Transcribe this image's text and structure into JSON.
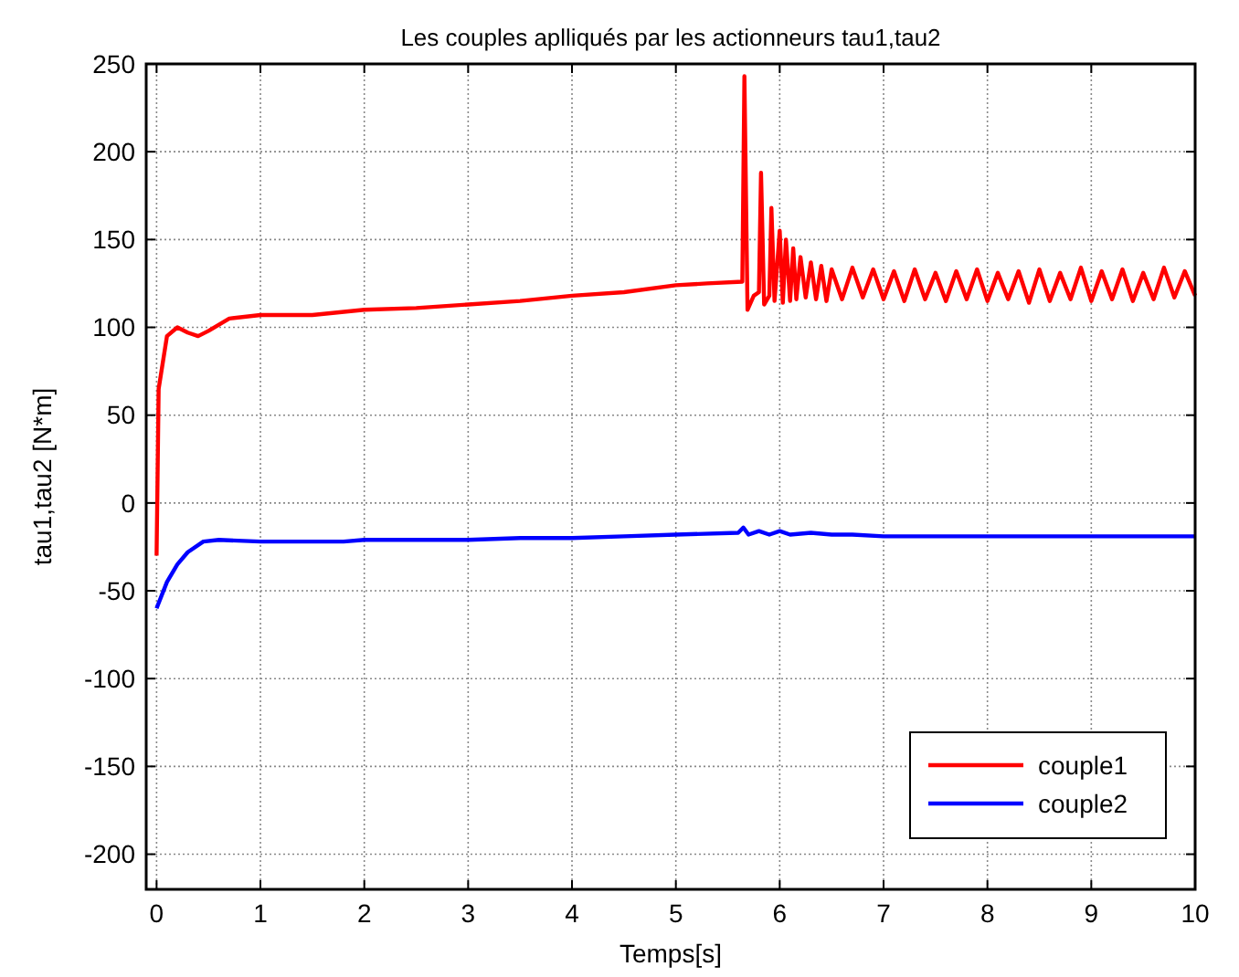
{
  "chart_data": {
    "type": "line",
    "title": "Les couples aplliqués par les actionneurs tau1,tau2",
    "xlabel": "Temps[s]",
    "ylabel": "tau1,tau2 [N*m]",
    "xlim": [
      -0.1,
      10
    ],
    "xticks": [
      0,
      1,
      2,
      3,
      4,
      5,
      6,
      7,
      8,
      9,
      10
    ],
    "ylim": [
      -220,
      250
    ],
    "yticks": [
      -200,
      -150,
      -100,
      -50,
      0,
      50,
      100,
      150,
      200,
      250
    ],
    "grid": true,
    "legend": "bottom right",
    "line_style": "solid",
    "marker": "none",
    "series": [
      {
        "name": "couple1",
        "color": "#ff0000",
        "x": [
          0,
          0.02,
          0.1,
          0.2,
          0.3,
          0.4,
          0.5,
          0.7,
          1,
          1.5,
          2,
          2.5,
          3,
          3.5,
          4,
          4.5,
          5,
          5.3,
          5.64,
          5.66,
          5.69,
          5.75,
          5.8,
          5.82,
          5.85,
          5.9,
          5.92,
          5.95,
          6,
          6.03,
          6.06,
          6.1,
          6.13,
          6.16,
          6.2,
          6.25,
          6.3,
          6.35,
          6.4,
          6.45,
          6.5,
          6.6,
          6.7,
          6.8,
          6.9,
          7,
          7.1,
          7.2,
          7.3,
          7.4,
          7.5,
          7.6,
          7.7,
          7.8,
          7.9,
          8,
          8.1,
          8.2,
          8.3,
          8.4,
          8.5,
          8.6,
          8.7,
          8.8,
          8.9,
          9,
          9.1,
          9.2,
          9.3,
          9.4,
          9.5,
          9.6,
          9.7,
          9.8,
          9.9,
          10
        ],
        "values": [
          -30,
          65,
          95,
          100,
          97,
          95,
          98,
          105,
          107,
          107,
          110,
          111,
          113,
          115,
          118,
          120,
          124,
          125,
          126,
          243,
          110,
          118,
          120,
          188,
          113,
          118,
          168,
          115,
          155,
          114,
          150,
          115,
          145,
          116,
          140,
          117,
          137,
          116,
          135,
          115,
          133,
          116,
          134,
          117,
          133,
          116,
          132,
          115,
          133,
          116,
          131,
          115,
          132,
          116,
          133,
          115,
          131,
          116,
          132,
          114,
          133,
          115,
          131,
          116,
          134,
          115,
          132,
          116,
          133,
          115,
          131,
          116,
          134,
          117,
          132,
          118
        ]
      },
      {
        "name": "couple2",
        "color": "#0000ff",
        "x": [
          0,
          0.1,
          0.2,
          0.3,
          0.45,
          0.6,
          1,
          1.5,
          1.8,
          2,
          2.5,
          3,
          3.5,
          4,
          4.5,
          5,
          5.6,
          5.65,
          5.7,
          5.8,
          5.9,
          6,
          6.1,
          6.3,
          6.5,
          6.7,
          7,
          8,
          9,
          10
        ],
        "values": [
          -60,
          -45,
          -35,
          -28,
          -22,
          -21,
          -22,
          -22,
          -22,
          -21,
          -21,
          -21,
          -20,
          -20,
          -19,
          -18,
          -17,
          -14,
          -18,
          -16,
          -18,
          -16,
          -18,
          -17,
          -18,
          -18,
          -19,
          -19,
          -19,
          -19
        ]
      }
    ]
  }
}
